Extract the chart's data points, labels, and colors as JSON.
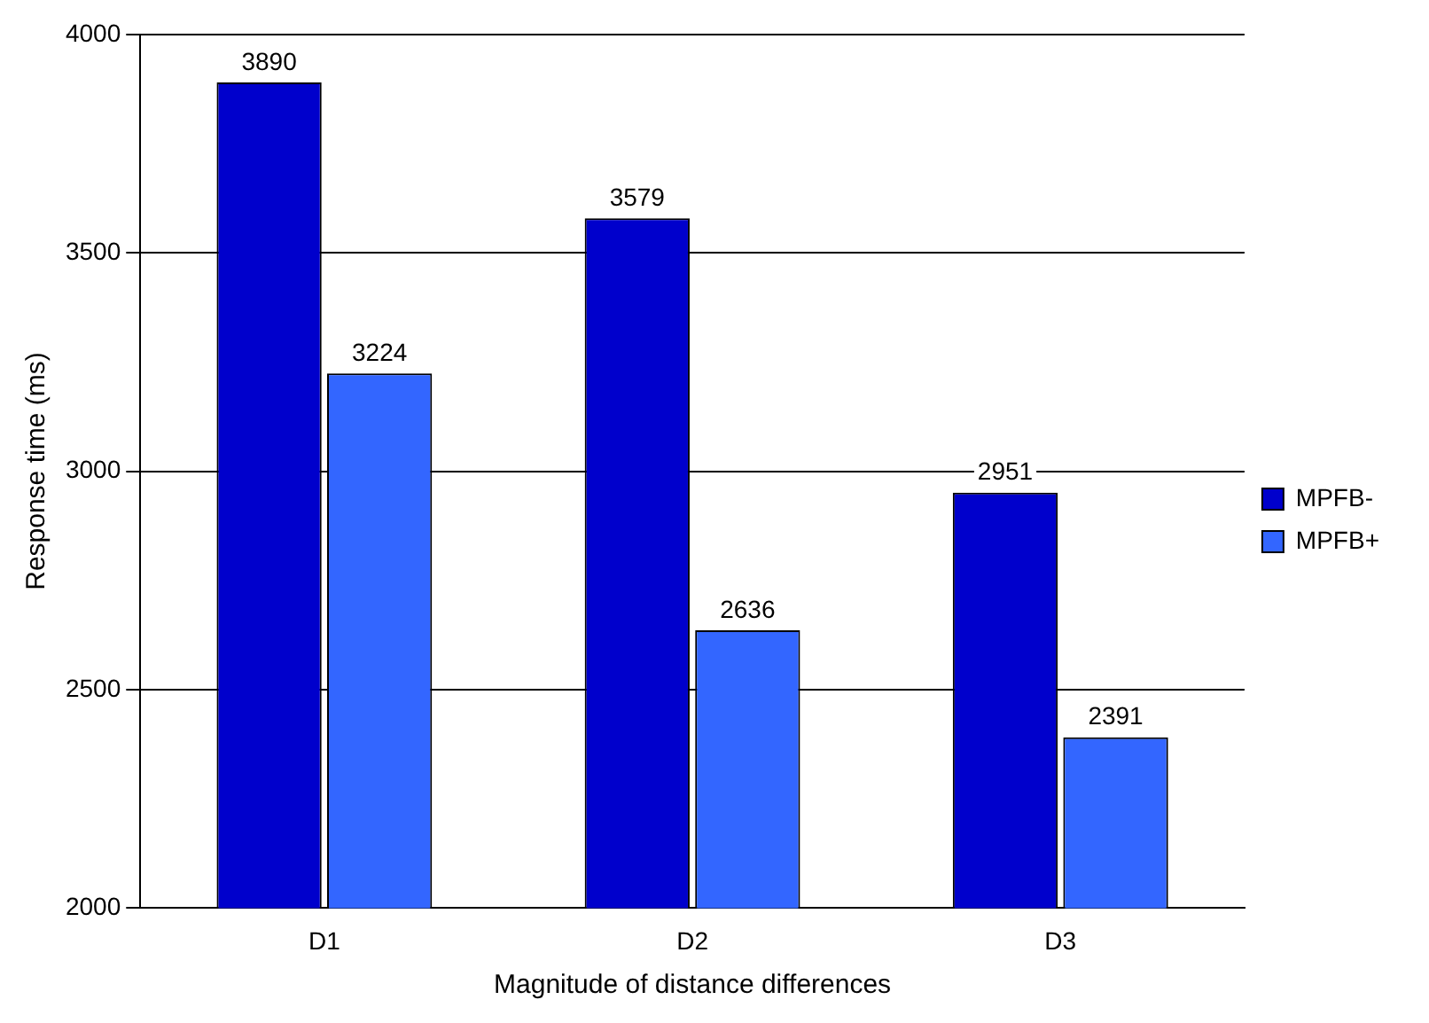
{
  "chart_data": {
    "type": "bar",
    "xlabel": "Magnitude of distance differences",
    "ylabel": "Response time (ms)",
    "categories": [
      "D1",
      "D2",
      "D3"
    ],
    "series": [
      {
        "name": "MPFB-",
        "color": "#0000cc",
        "values": [
          3890,
          3579,
          2951
        ]
      },
      {
        "name": "MPFB+",
        "color": "#3366ff",
        "values": [
          3224,
          2636,
          2391
        ]
      }
    ],
    "ylim": [
      2000,
      4000
    ],
    "yticks": [
      2000,
      2500,
      3000,
      3500,
      4000
    ],
    "grid": "y",
    "legend": "right",
    "data_labels": true
  }
}
